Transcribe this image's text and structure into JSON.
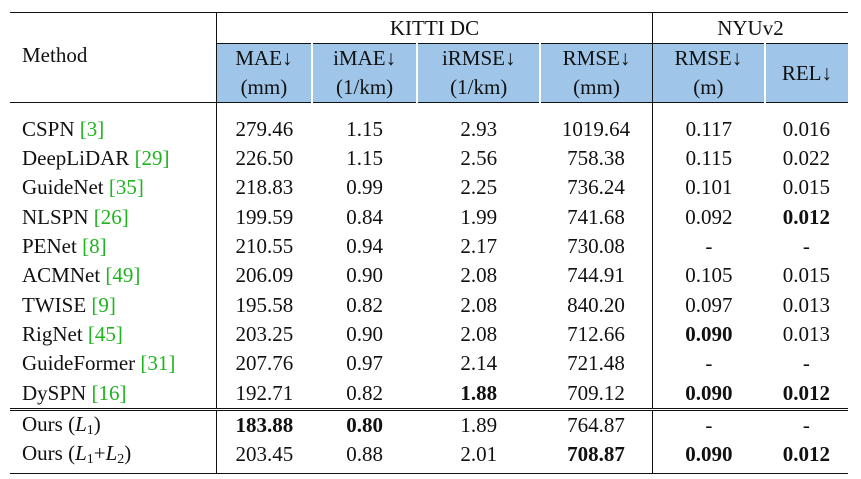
{
  "header": {
    "method": "Method",
    "kitti": "KITTI DC",
    "nyu": "NYUv2",
    "cols": [
      {
        "name": "MAE↓",
        "unit": "(mm)"
      },
      {
        "name": "iMAE↓",
        "unit": "(1/km)"
      },
      {
        "name": "iRMSE↓",
        "unit": "(1/km)"
      },
      {
        "name": "RMSE↓",
        "unit": "(mm)"
      },
      {
        "name": "RMSE↓",
        "unit": "(m)"
      },
      {
        "name": "REL↓",
        "unit": ""
      }
    ]
  },
  "rows": [
    {
      "name": "CSPN",
      "ref": "[3]",
      "vals": [
        "279.46",
        "1.15",
        "2.93",
        "1019.64",
        "0.117",
        "0.016"
      ]
    },
    {
      "name": "DeepLiDAR",
      "ref": "[29]",
      "vals": [
        "226.50",
        "1.15",
        "2.56",
        "758.38",
        "0.115",
        "0.022"
      ]
    },
    {
      "name": "GuideNet",
      "ref": "[35]",
      "vals": [
        "218.83",
        "0.99",
        "2.25",
        "736.24",
        "0.101",
        "0.015"
      ]
    },
    {
      "name": "NLSPN",
      "ref": "[26]",
      "vals": [
        "199.59",
        "0.84",
        "1.99",
        "741.68",
        "0.092",
        "0.012"
      ]
    },
    {
      "name": "PENet",
      "ref": "[8]",
      "vals": [
        "210.55",
        "0.94",
        "2.17",
        "730.08",
        "-",
        "-"
      ]
    },
    {
      "name": "ACMNet",
      "ref": "[49]",
      "vals": [
        "206.09",
        "0.90",
        "2.08",
        "744.91",
        "0.105",
        "0.015"
      ]
    },
    {
      "name": "TWISE",
      "ref": "[9]",
      "vals": [
        "195.58",
        "0.82",
        "2.08",
        "840.20",
        "0.097",
        "0.013"
      ]
    },
    {
      "name": "RigNet",
      "ref": "[45]",
      "vals": [
        "203.25",
        "0.90",
        "2.08",
        "712.66",
        "0.090",
        "0.013"
      ]
    },
    {
      "name": "GuideFormer",
      "ref": "[31]",
      "vals": [
        "207.76",
        "0.97",
        "2.14",
        "721.48",
        "-",
        "-"
      ]
    },
    {
      "name": "DySPN",
      "ref": "[16]",
      "vals": [
        "192.71",
        "0.82",
        "1.88",
        "709.12",
        "0.090",
        "0.012"
      ]
    }
  ],
  "ours": [
    {
      "prefix": "Ours (",
      "math": "L",
      "sub": "1",
      "plus": "",
      "math2": "",
      "sub2": "",
      "suffix": ")",
      "vals": [
        "183.88",
        "0.80",
        "1.89",
        "764.87",
        "-",
        "-"
      ]
    },
    {
      "prefix": "Ours (",
      "math": "L",
      "sub": "1",
      "plus": "+",
      "math2": "L",
      "sub2": "2",
      "suffix": ")",
      "vals": [
        "203.45",
        "0.88",
        "2.01",
        "708.87",
        "0.090",
        "0.012"
      ]
    }
  ],
  "bold_cells": {
    "NLSPN": [
      5
    ],
    "RigNet": [
      4
    ],
    "DySPN": [
      2,
      4,
      5
    ],
    "ours0": [
      0,
      1
    ],
    "ours1": [
      3,
      4,
      5
    ]
  },
  "colors": {
    "header_blue": "#9fc5e8",
    "citation_green": "#1fb51f"
  }
}
